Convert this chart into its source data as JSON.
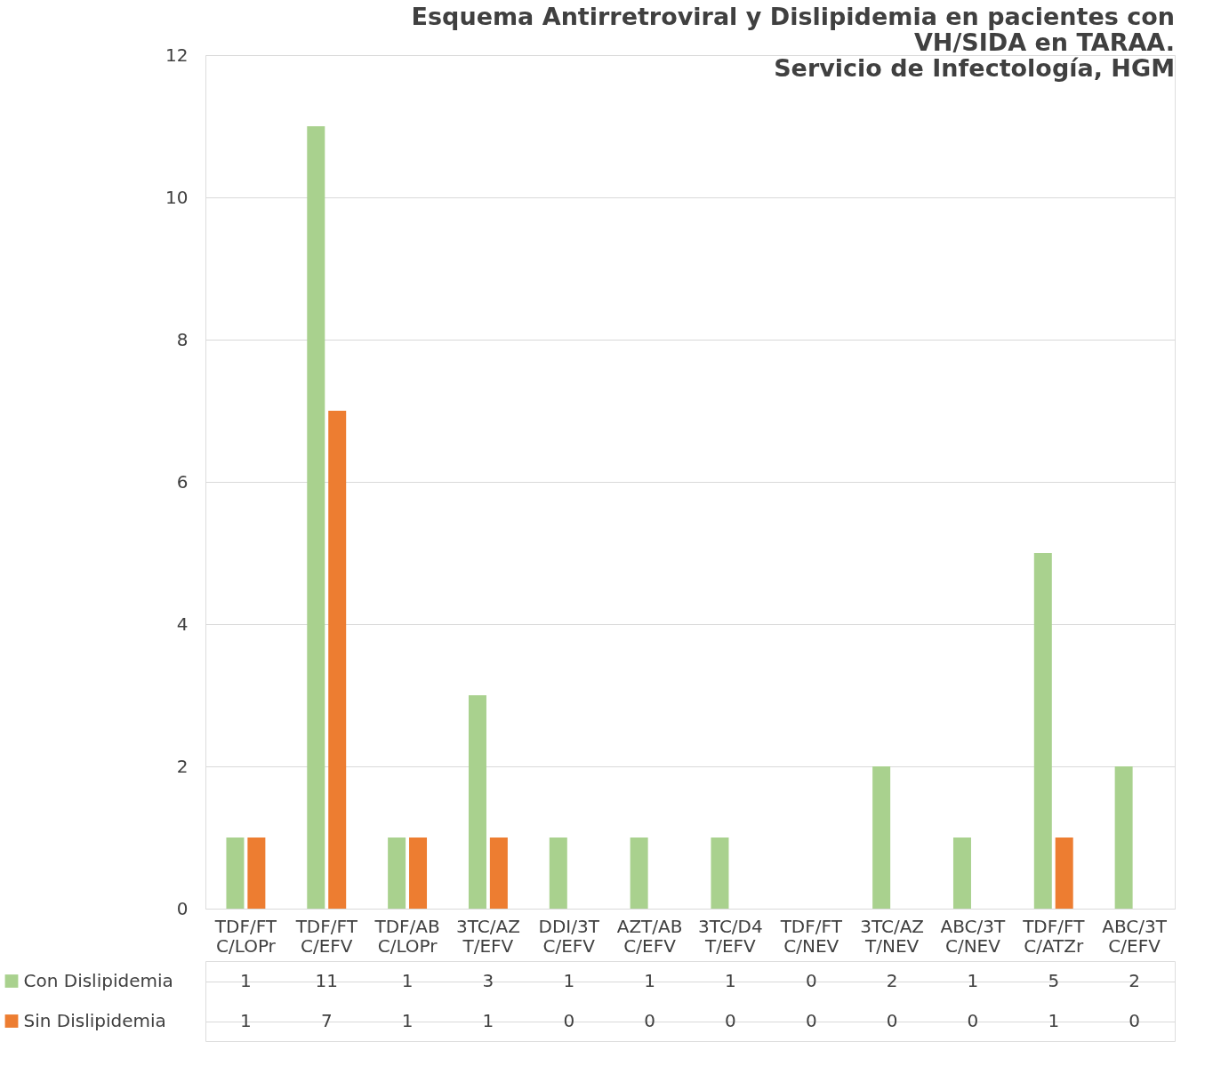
{
  "chart_data": {
    "type": "bar",
    "title": [
      "Esquema Antirretroviral y Dislipidemia en pacientes con",
      "VH/SIDA en TARAA.",
      "Servicio de Infectología, HGM"
    ],
    "categories": [
      "TDF/FTC/LOPr",
      "TDF/FTC/EFV",
      "TDF/ABC/LOPr",
      "3TC/AZT/EFV",
      "DDI/3TC/EFV",
      "AZT/ABC/EFV",
      "3TC/D4T/EFV",
      "TDF/FTC/NEV",
      "3TC/AZT/NEV",
      "ABC/3TC/NEV",
      "TDF/FTC/ATZr",
      "ABC/3TC/EFV"
    ],
    "series": [
      {
        "name": "Con Dislipidemia",
        "color": "#a9d18e",
        "values": [
          1,
          11,
          1,
          3,
          1,
          1,
          1,
          0,
          2,
          1,
          5,
          2
        ]
      },
      {
        "name": "Sin Dislipidemia",
        "color": "#ed7d31",
        "values": [
          1,
          7,
          1,
          1,
          0,
          0,
          0,
          0,
          0,
          0,
          1,
          0
        ]
      }
    ],
    "ylim": [
      0,
      12
    ],
    "yticks": [
      0,
      2,
      4,
      6,
      8,
      10,
      12
    ],
    "grid": "y",
    "legend": "bottom",
    "data_labels": true
  }
}
